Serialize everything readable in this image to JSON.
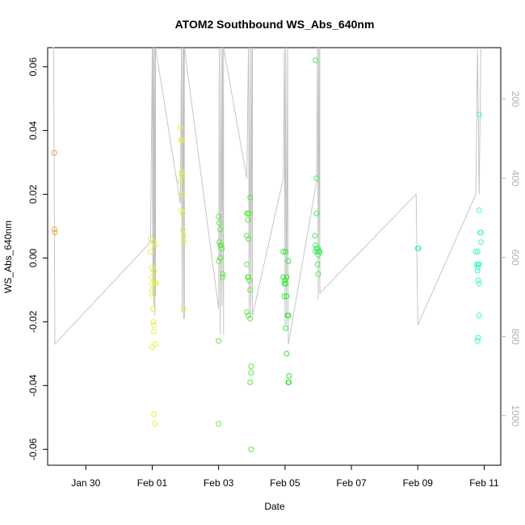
{
  "chart_data": {
    "type": "scatter",
    "title": "ATOM2 Southbound WS_Abs_640nm",
    "xlabel": "Date",
    "ylabel": "WS_Abs_640nm",
    "x_tick_labels": [
      "Jan 30",
      "Feb 01",
      "Feb 03",
      "Feb 05",
      "Feb 07",
      "Feb 09",
      "Feb 11"
    ],
    "x_tick_days": [
      -2,
      0,
      2,
      4,
      6,
      8,
      10
    ],
    "xlim_days": [
      -3.15,
      10.5
    ],
    "y_ticks": [
      -0.06,
      -0.04,
      -0.02,
      0.0,
      0.02,
      0.04,
      0.06
    ],
    "y_tick_labels": [
      "-0.06",
      "-0.04",
      "-0.02",
      "0.00",
      "0.02",
      "0.04",
      "0.06"
    ],
    "ylim": [
      -0.065,
      0.066
    ],
    "right_axis": {
      "ticks": [
        200,
        400,
        600,
        800,
        1000
      ],
      "tick_labels": [
        "200",
        "400",
        "600",
        "800",
        "1000"
      ],
      "ylim_reversed": [
        70,
        1125
      ]
    },
    "colors": {
      "trace": "#c0c0c0",
      "orange": "#f5a040",
      "yellow": "#e8f040",
      "green": "#60e840",
      "green2": "#30e830",
      "green3": "#40f060",
      "teal": "#40f0b0",
      "cyan": "#40f8c8"
    },
    "series": [
      {
        "color_key": "orange",
        "points": [
          [
            -2.95,
            0.033
          ],
          [
            -2.95,
            0.009
          ],
          [
            -2.93,
            0.008
          ]
        ]
      },
      {
        "color_key": "yellow",
        "points": [
          [
            -0.05,
            0.006
          ],
          [
            -0.05,
            0.002
          ],
          [
            0.0,
            -0.003
          ],
          [
            0.0,
            -0.006
          ],
          [
            0.0,
            -0.008
          ],
          [
            0.0,
            -0.01
          ],
          [
            0.03,
            -0.016
          ],
          [
            0.03,
            -0.02
          ],
          [
            0.05,
            -0.021
          ],
          [
            0.05,
            -0.023
          ],
          [
            0.0,
            -0.028
          ],
          [
            0.1,
            -0.027
          ],
          [
            0.05,
            0.005
          ],
          [
            0.1,
            0.004
          ],
          [
            0.08,
            -0.008
          ],
          [
            0.12,
            -0.008
          ],
          [
            0.05,
            -0.049
          ],
          [
            0.08,
            -0.052
          ],
          [
            0.0,
            -0.012
          ],
          [
            0.05,
            -0.004
          ]
        ]
      },
      {
        "color_key": "yellow",
        "points": [
          [
            0.85,
            0.041
          ],
          [
            0.85,
            0.037
          ],
          [
            0.9,
            0.037
          ],
          [
            0.88,
            0.027
          ],
          [
            0.9,
            0.026
          ],
          [
            0.85,
            0.024
          ],
          [
            0.9,
            0.02
          ],
          [
            0.88,
            0.015
          ],
          [
            0.92,
            0.014
          ],
          [
            0.92,
            0.009
          ],
          [
            0.95,
            0.007
          ],
          [
            0.95,
            0.005
          ],
          [
            0.95,
            -0.016
          ]
        ]
      },
      {
        "color_key": "green",
        "points": [
          [
            2.0,
            0.013
          ],
          [
            2.02,
            0.011
          ],
          [
            2.05,
            0.009
          ],
          [
            2.02,
            0.005
          ],
          [
            2.05,
            0.004
          ],
          [
            2.08,
            0.004
          ],
          [
            2.1,
            0.003
          ],
          [
            2.05,
            0.0
          ],
          [
            2.0,
            -0.001
          ],
          [
            2.12,
            -0.005
          ],
          [
            2.12,
            -0.006
          ],
          [
            2.0,
            -0.026
          ],
          [
            2.0,
            -0.052
          ]
        ]
      },
      {
        "color_key": "green",
        "points": [
          [
            2.85,
            0.014
          ],
          [
            2.9,
            0.014
          ],
          [
            2.92,
            0.014
          ],
          [
            2.88,
            0.012
          ],
          [
            2.85,
            0.007
          ],
          [
            2.9,
            0.006
          ],
          [
            2.85,
            -0.002
          ],
          [
            2.88,
            -0.006
          ],
          [
            2.9,
            -0.006
          ],
          [
            2.92,
            -0.007
          ],
          [
            2.95,
            -0.01
          ],
          [
            2.85,
            -0.017
          ],
          [
            2.9,
            -0.018
          ],
          [
            2.95,
            -0.019
          ],
          [
            2.95,
            0.019
          ],
          [
            2.98,
            -0.034
          ],
          [
            2.98,
            -0.036
          ],
          [
            2.95,
            -0.039
          ],
          [
            2.98,
            -0.06
          ]
        ]
      },
      {
        "color_key": "green2",
        "points": [
          [
            3.95,
            0.002
          ],
          [
            4.02,
            0.002
          ],
          [
            4.1,
            -0.001
          ],
          [
            3.95,
            -0.006
          ],
          [
            4.0,
            -0.007
          ],
          [
            3.98,
            -0.008
          ],
          [
            4.05,
            -0.006
          ],
          [
            4.02,
            -0.008
          ],
          [
            3.98,
            -0.012
          ],
          [
            4.05,
            -0.012
          ],
          [
            4.08,
            -0.018
          ],
          [
            4.1,
            -0.018
          ],
          [
            4.02,
            -0.022
          ],
          [
            4.05,
            -0.03
          ],
          [
            4.12,
            -0.037
          ],
          [
            4.12,
            -0.039
          ],
          [
            4.1,
            -0.039
          ]
        ]
      },
      {
        "color_key": "green3",
        "points": [
          [
            4.92,
            0.062
          ],
          [
            4.95,
            0.025
          ],
          [
            4.95,
            0.014
          ],
          [
            4.9,
            0.007
          ],
          [
            4.92,
            0.004
          ],
          [
            4.95,
            0.003
          ],
          [
            5.0,
            0.003
          ],
          [
            4.92,
            0.002
          ],
          [
            4.98,
            0.002
          ],
          [
            5.02,
            0.002
          ],
          [
            5.05,
            0.002
          ],
          [
            5.0,
            0.001
          ],
          [
            4.98,
            -0.002
          ],
          [
            5.0,
            -0.005
          ]
        ]
      },
      {
        "color_key": "teal",
        "points": [
          [
            8.0,
            0.003
          ],
          [
            8.02,
            0.003
          ]
        ]
      },
      {
        "color_key": "cyan",
        "points": [
          [
            9.85,
            0.045
          ],
          [
            9.85,
            0.015
          ],
          [
            9.88,
            0.008
          ],
          [
            9.9,
            0.008
          ],
          [
            9.9,
            0.005
          ],
          [
            9.75,
            0.002
          ],
          [
            9.8,
            0.002
          ],
          [
            9.78,
            -0.002
          ],
          [
            9.8,
            -0.003
          ],
          [
            9.82,
            -0.002
          ],
          [
            9.85,
            -0.002
          ],
          [
            9.8,
            -0.004
          ],
          [
            9.82,
            -0.007
          ],
          [
            9.85,
            -0.008
          ],
          [
            9.85,
            -0.018
          ],
          [
            9.82,
            -0.025
          ],
          [
            9.8,
            -0.026
          ]
        ]
      }
    ],
    "trace": [
      [
        -3.0,
        66
      ],
      [
        -2.97,
        66
      ],
      [
        -2.93,
        -0.027
      ],
      [
        -0.05,
        0.005
      ],
      [
        0.0,
        66
      ],
      [
        0.02,
        -0.012
      ],
      [
        0.03,
        66
      ],
      [
        0.05,
        -0.015
      ],
      [
        0.06,
        66
      ],
      [
        0.08,
        -0.018
      ],
      [
        0.09,
        66
      ],
      [
        0.1,
        -0.012
      ],
      [
        0.1,
        0.066
      ],
      [
        0.85,
        0.017
      ],
      [
        0.88,
        66
      ],
      [
        0.9,
        -0.017
      ],
      [
        0.92,
        66
      ],
      [
        0.95,
        -0.019
      ],
      [
        0.95,
        66
      ],
      [
        0.97,
        -0.019
      ],
      [
        0.97,
        66
      ],
      [
        2.0,
        -0.016
      ],
      [
        2.02,
        66
      ],
      [
        2.05,
        -0.024
      ],
      [
        2.08,
        66
      ],
      [
        2.1,
        -0.015
      ],
      [
        2.12,
        66
      ],
      [
        2.15,
        -0.024
      ],
      [
        2.15,
        0.066
      ],
      [
        2.85,
        0.025
      ],
      [
        2.9,
        66
      ],
      [
        2.92,
        -0.017
      ],
      [
        2.95,
        66
      ],
      [
        2.97,
        -0.018
      ],
      [
        3.0,
        66
      ],
      [
        3.02,
        -0.016
      ],
      [
        3.02,
        0.066
      ],
      [
        3.02,
        -0.018
      ],
      [
        3.95,
        0.025
      ],
      [
        3.98,
        66
      ],
      [
        4.0,
        -0.021
      ],
      [
        4.02,
        66
      ],
      [
        4.05,
        -0.021
      ],
      [
        4.08,
        66
      ],
      [
        4.1,
        -0.027
      ],
      [
        4.95,
        0.024
      ],
      [
        4.98,
        66
      ],
      [
        5.0,
        -0.013
      ],
      [
        5.02,
        66
      ],
      [
        5.05,
        -0.01
      ],
      [
        5.05,
        0.066
      ],
      [
        5.05,
        -0.011
      ],
      [
        7.95,
        0.02
      ],
      [
        8.0,
        -0.021
      ],
      [
        9.75,
        0.02
      ],
      [
        9.8,
        66
      ],
      [
        9.85,
        0.02
      ],
      [
        9.9,
        66
      ]
    ]
  }
}
